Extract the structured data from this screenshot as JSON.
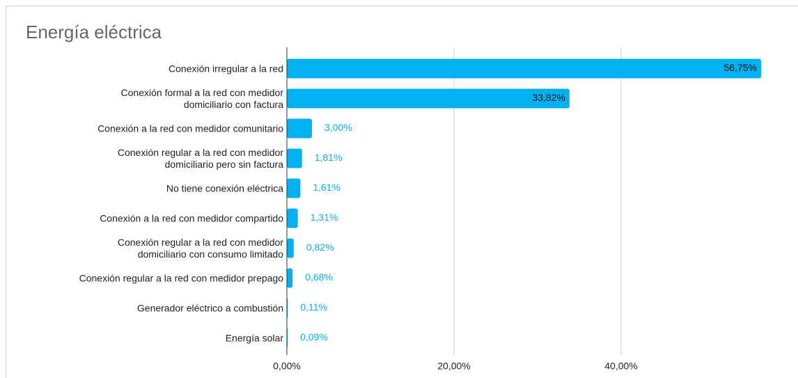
{
  "chart_data": {
    "type": "hbar",
    "title": "Energía eléctrica",
    "categories": [
      "Conexión irregular a la red",
      "Conexión formal a la red con medidor\ndomiciliario con factura",
      "Conexión a la red con medidor comunitario",
      "Conexión regular a la red con medidor\ndomiciliario pero sin factura",
      "No tiene conexión eléctrica",
      "Conexión a la red con medidor compartido",
      "Conexión regular a la red con medidor\ndomiciliario con consumo limitado",
      "Conexión regular a la red con medidor prepago",
      "Generador eléctrico a combustión",
      "Energía solar"
    ],
    "values": [
      56.75,
      33.82,
      3.0,
      1.81,
      1.61,
      1.31,
      0.82,
      0.68,
      0.11,
      0.09
    ],
    "value_labels": [
      "56,75%",
      "33,82%",
      "3,00%",
      "1,81%",
      "1,61%",
      "1,31%",
      "0,82%",
      "0,68%",
      "0,11%",
      "0,09%"
    ],
    "color": "#03b0f0",
    "xlim": [
      0,
      60
    ],
    "xticks": [
      {
        "value": 0,
        "label": "0,00%"
      },
      {
        "value": 20,
        "label": "20,00%"
      },
      {
        "value": 40,
        "label": "40,00%"
      }
    ],
    "grid": true
  }
}
